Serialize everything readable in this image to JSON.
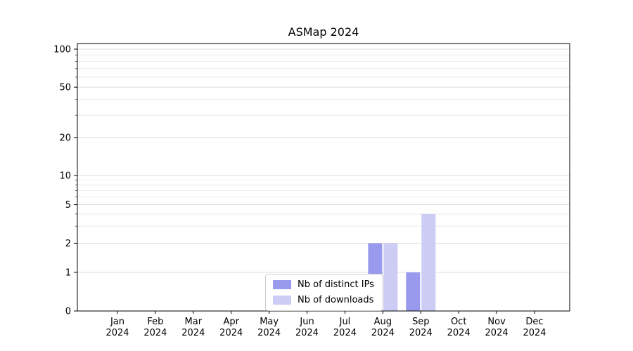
{
  "chart_data": {
    "type": "bar",
    "title": "ASMap 2024",
    "xlabel": "",
    "ylabel": "",
    "yscale": "symlog",
    "ylim": [
      0,
      111
    ],
    "y_ticks": [
      0,
      1,
      2,
      5,
      10,
      20,
      50,
      100
    ],
    "grid": true,
    "legend_position": "lower center inside axes",
    "categories": [
      "Jan 2024",
      "Feb 2024",
      "Mar 2024",
      "Apr 2024",
      "May 2024",
      "Jun 2024",
      "Jul 2024",
      "Aug 2024",
      "Sep 2024",
      "Oct 2024",
      "Nov 2024",
      "Dec 2024"
    ],
    "series": [
      {
        "name": "Nb of distinct IPs",
        "color": "#9999ee",
        "values": [
          0,
          0,
          0,
          0,
          0,
          0,
          0,
          2,
          1,
          0,
          0,
          0
        ]
      },
      {
        "name": "Nb of downloads",
        "color": "#ccccf5",
        "values": [
          0,
          0,
          0,
          0,
          0,
          0,
          0,
          2,
          4,
          0,
          0,
          0
        ]
      }
    ]
  }
}
